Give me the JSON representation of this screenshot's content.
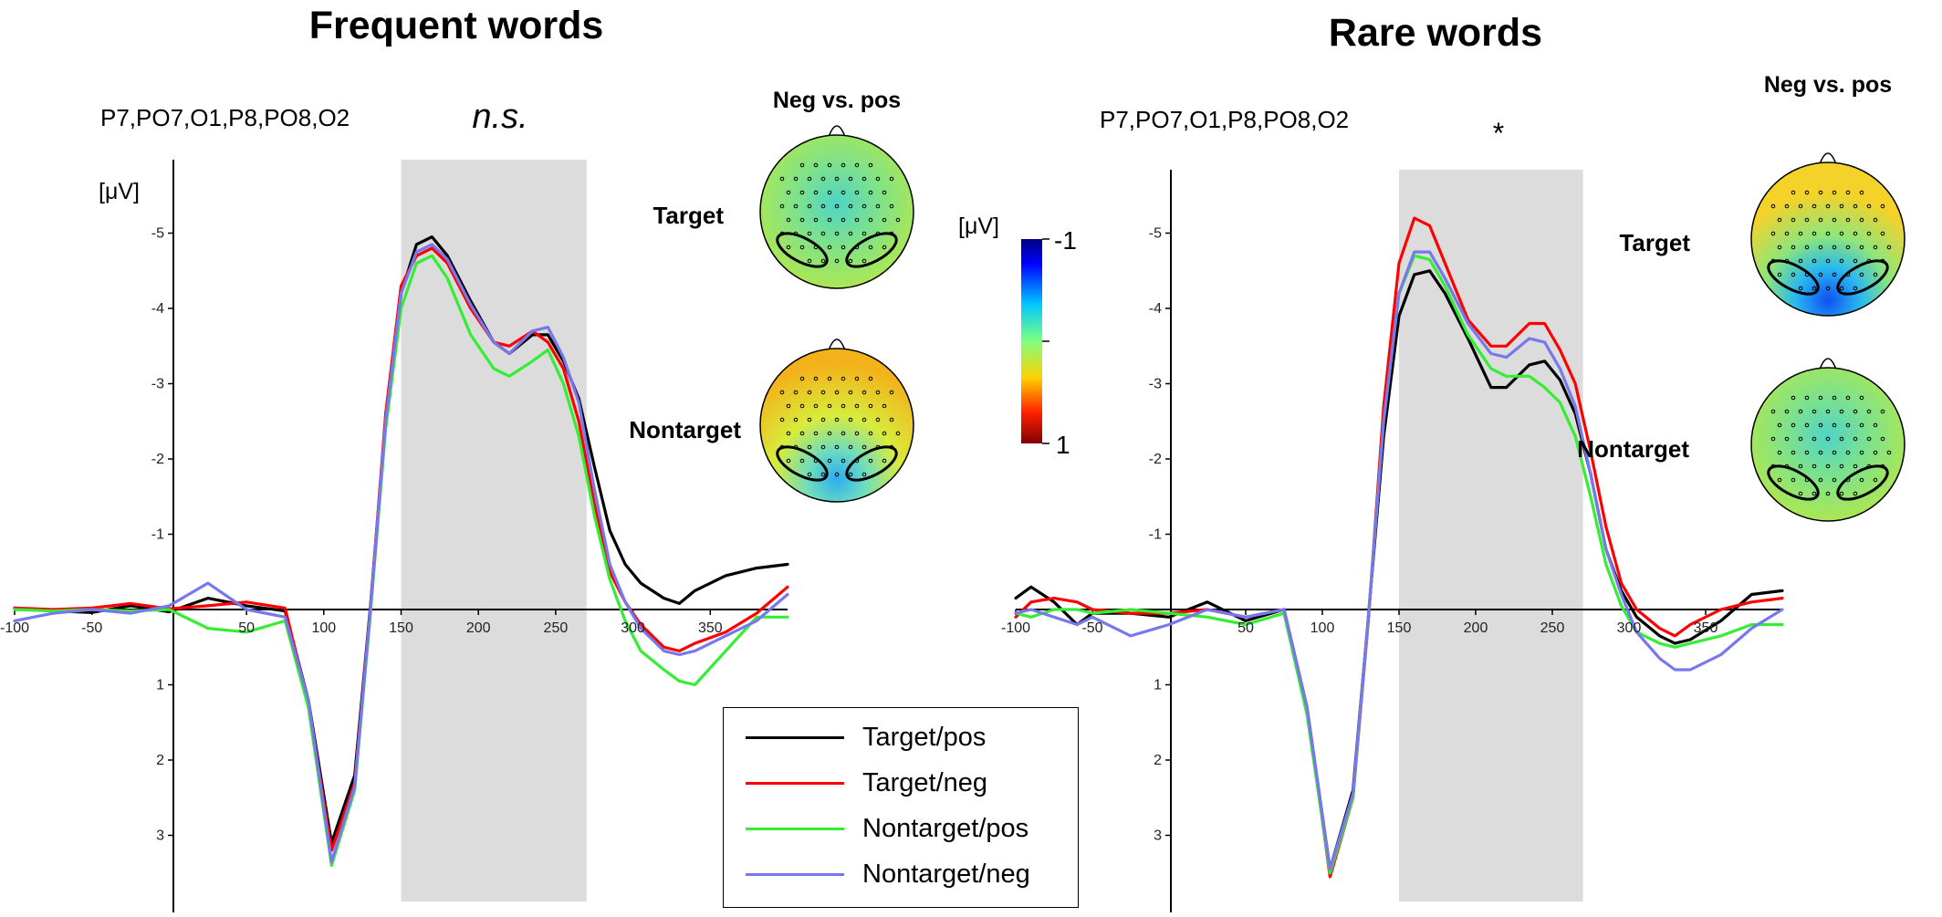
{
  "chart_data": [
    {
      "type": "line",
      "title": "Frequent words",
      "channels": "P7,PO7,O1,P8,PO8,O2",
      "significance": "n.s.",
      "ylabel": "[μV]",
      "y_inverted": true,
      "xlim": [
        -100,
        400
      ],
      "ylim": [
        -5.9,
        4.0
      ],
      "x_ticks": [
        "-100",
        "-50",
        "50",
        "100",
        "150",
        "200",
        "250",
        "300",
        "350"
      ],
      "y_ticks": [
        "-5",
        "-4",
        "-3",
        "-2",
        "-1",
        "1",
        "2",
        "3"
      ],
      "shaded_window": [
        150,
        270
      ],
      "topomap_header": "Neg vs. pos",
      "topomaps": [
        {
          "label": "Target",
          "pattern": "neutral-cool"
        },
        {
          "label": "Nontarget",
          "pattern": "warm-top-cool-bottom"
        }
      ],
      "series": [
        {
          "name": "Target/pos",
          "color": "#000000",
          "x": [
            -100,
            -75,
            -50,
            -25,
            0,
            25,
            50,
            75,
            90,
            105,
            120,
            130,
            140,
            150,
            160,
            170,
            180,
            195,
            210,
            220,
            235,
            245,
            255,
            265,
            275,
            285,
            295,
            305,
            320,
            330,
            340,
            360,
            380,
            400
          ],
          "y": [
            -0.02,
            0.02,
            0.04,
            -0.05,
            0.03,
            -0.15,
            -0.05,
            0.02,
            1.2,
            3.1,
            2.2,
            0.0,
            -2.5,
            -4.2,
            -4.85,
            -4.95,
            -4.7,
            -4.1,
            -3.55,
            -3.4,
            -3.65,
            -3.65,
            -3.3,
            -2.8,
            -1.9,
            -1.05,
            -0.6,
            -0.35,
            -0.15,
            -0.08,
            -0.25,
            -0.45,
            -0.55,
            -0.6
          ]
        },
        {
          "name": "Target/neg",
          "color": "#ff0000",
          "x": [
            -100,
            -75,
            -50,
            -25,
            0,
            25,
            50,
            75,
            90,
            105,
            120,
            130,
            140,
            150,
            160,
            170,
            180,
            195,
            210,
            220,
            235,
            245,
            255,
            265,
            275,
            285,
            295,
            305,
            320,
            330,
            340,
            360,
            380,
            400
          ],
          "y": [
            -0.02,
            0.0,
            -0.02,
            -0.08,
            -0.01,
            -0.05,
            -0.1,
            -0.02,
            1.25,
            3.2,
            2.3,
            0.05,
            -2.6,
            -4.3,
            -4.7,
            -4.8,
            -4.6,
            -4.0,
            -3.55,
            -3.5,
            -3.7,
            -3.55,
            -3.2,
            -2.5,
            -1.4,
            -0.5,
            -0.1,
            0.2,
            0.5,
            0.55,
            0.45,
            0.3,
            0.05,
            -0.3
          ]
        },
        {
          "name": "Nontarget/pos",
          "color": "#33ee33",
          "x": [
            -100,
            -75,
            -50,
            -25,
            0,
            25,
            50,
            75,
            90,
            105,
            120,
            130,
            140,
            150,
            160,
            170,
            180,
            195,
            210,
            220,
            235,
            245,
            255,
            265,
            275,
            285,
            295,
            305,
            320,
            330,
            340,
            360,
            380,
            400
          ],
          "y": [
            0.0,
            0.02,
            0.0,
            0.02,
            0.0,
            0.25,
            0.3,
            0.15,
            1.3,
            3.4,
            2.4,
            0.1,
            -2.4,
            -4.0,
            -4.6,
            -4.7,
            -4.4,
            -3.65,
            -3.2,
            -3.1,
            -3.3,
            -3.45,
            -3.0,
            -2.3,
            -1.25,
            -0.4,
            0.15,
            0.55,
            0.8,
            0.95,
            1.0,
            0.55,
            0.1,
            0.1
          ]
        },
        {
          "name": "Nontarget/neg",
          "color": "#7777ee",
          "x": [
            -100,
            -75,
            -50,
            -25,
            0,
            25,
            50,
            75,
            90,
            105,
            120,
            130,
            140,
            150,
            160,
            170,
            180,
            195,
            210,
            220,
            235,
            245,
            255,
            265,
            275,
            285,
            295,
            305,
            320,
            330,
            340,
            360,
            380,
            400
          ],
          "y": [
            0.15,
            0.05,
            0.0,
            0.05,
            -0.05,
            -0.35,
            0.0,
            0.1,
            1.2,
            3.35,
            2.35,
            0.05,
            -2.5,
            -4.2,
            -4.75,
            -4.85,
            -4.65,
            -4.05,
            -3.55,
            -3.4,
            -3.7,
            -3.75,
            -3.35,
            -2.75,
            -1.6,
            -0.6,
            -0.1,
            0.25,
            0.55,
            0.6,
            0.55,
            0.35,
            0.15,
            -0.2
          ]
        }
      ]
    },
    {
      "type": "line",
      "title": "Rare words",
      "channels": "P7,PO7,O1,P8,PO8,O2",
      "significance": "*",
      "ylabel": "[μV]",
      "y_inverted": true,
      "xlim": [
        -100,
        400
      ],
      "ylim": [
        -5.9,
        4.0
      ],
      "x_ticks": [
        "-100",
        "-50",
        "50",
        "100",
        "150",
        "200",
        "250",
        "300",
        "350"
      ],
      "y_ticks": [
        "-5",
        "-4",
        "-3",
        "-2",
        "-1",
        "1",
        "2",
        "3"
      ],
      "shaded_window": [
        150,
        270
      ],
      "topomap_header": "Neg vs. pos",
      "topomaps": [
        {
          "label": "Target",
          "pattern": "cool-bottom"
        },
        {
          "label": "Nontarget",
          "pattern": "neutral-cool"
        }
      ],
      "series": [
        {
          "name": "Target/pos",
          "color": "#000000",
          "x": [
            -100,
            -90,
            -75,
            -60,
            -50,
            -25,
            0,
            25,
            50,
            75,
            90,
            105,
            120,
            130,
            140,
            150,
            160,
            170,
            180,
            195,
            210,
            220,
            235,
            245,
            255,
            265,
            275,
            285,
            295,
            305,
            320,
            330,
            340,
            360,
            380,
            400
          ],
          "y": [
            -0.15,
            -0.3,
            -0.1,
            0.2,
            0.05,
            0.05,
            0.1,
            -0.1,
            0.15,
            0.0,
            1.3,
            3.45,
            2.4,
            0.1,
            -2.3,
            -3.9,
            -4.45,
            -4.5,
            -4.2,
            -3.6,
            -2.95,
            -2.95,
            -3.25,
            -3.3,
            -3.05,
            -2.6,
            -1.8,
            -0.8,
            -0.25,
            0.1,
            0.35,
            0.45,
            0.4,
            0.15,
            -0.2,
            -0.25
          ]
        },
        {
          "name": "Target/neg",
          "color": "#ff0000",
          "x": [
            -100,
            -90,
            -75,
            -60,
            -50,
            -25,
            0,
            25,
            50,
            75,
            90,
            105,
            120,
            130,
            140,
            150,
            160,
            170,
            180,
            195,
            210,
            220,
            235,
            245,
            255,
            265,
            275,
            285,
            295,
            305,
            320,
            330,
            340,
            360,
            380,
            400
          ],
          "y": [
            0.1,
            -0.1,
            -0.15,
            -0.1,
            0.0,
            0.05,
            0.05,
            0.0,
            0.1,
            0.0,
            1.3,
            3.55,
            2.5,
            0.15,
            -2.7,
            -4.6,
            -5.2,
            -5.1,
            -4.6,
            -3.85,
            -3.5,
            -3.5,
            -3.8,
            -3.8,
            -3.45,
            -3.0,
            -2.1,
            -1.1,
            -0.35,
            0.0,
            0.25,
            0.35,
            0.2,
            0.0,
            -0.1,
            -0.15
          ]
        },
        {
          "name": "Nontarget/pos",
          "color": "#33ee33",
          "x": [
            -100,
            -90,
            -75,
            -60,
            -50,
            -25,
            0,
            25,
            50,
            75,
            90,
            105,
            120,
            130,
            140,
            150,
            160,
            170,
            180,
            195,
            210,
            220,
            235,
            245,
            255,
            265,
            275,
            285,
            295,
            305,
            320,
            330,
            340,
            360,
            380,
            400
          ],
          "y": [
            0.05,
            0.1,
            0.0,
            0.0,
            0.05,
            0.0,
            0.05,
            0.1,
            0.2,
            0.05,
            1.4,
            3.5,
            2.5,
            0.1,
            -2.5,
            -4.2,
            -4.7,
            -4.65,
            -4.3,
            -3.65,
            -3.2,
            -3.1,
            -3.1,
            -2.95,
            -2.75,
            -2.3,
            -1.5,
            -0.6,
            -0.05,
            0.3,
            0.45,
            0.5,
            0.45,
            0.35,
            0.2,
            0.2
          ]
        },
        {
          "name": "Nontarget/neg",
          "color": "#7777ee",
          "x": [
            -100,
            -90,
            -75,
            -60,
            -50,
            -25,
            0,
            25,
            50,
            75,
            90,
            105,
            120,
            130,
            140,
            150,
            160,
            170,
            180,
            195,
            210,
            220,
            235,
            245,
            255,
            265,
            275,
            285,
            295,
            305,
            320,
            330,
            340,
            360,
            380,
            400
          ],
          "y": [
            0.05,
            0.0,
            0.1,
            0.2,
            0.1,
            0.35,
            0.2,
            0.0,
            0.1,
            0.0,
            1.3,
            3.45,
            2.45,
            0.1,
            -2.5,
            -4.2,
            -4.75,
            -4.75,
            -4.4,
            -3.8,
            -3.4,
            -3.35,
            -3.6,
            -3.55,
            -3.2,
            -2.7,
            -1.8,
            -0.8,
            -0.2,
            0.3,
            0.65,
            0.8,
            0.8,
            0.6,
            0.25,
            0.0
          ]
        }
      ]
    }
  ],
  "colorbar": {
    "label": "[μV]",
    "max_label": "-1",
    "min_label": "1"
  },
  "legend": {
    "entries": [
      {
        "label": "Target/pos",
        "color": "#000000"
      },
      {
        "label": "Target/neg",
        "color": "#ff0000"
      },
      {
        "label": "Nontarget/pos",
        "color": "#33ee33"
      },
      {
        "label": "Nontarget/neg",
        "color": "#7777ee"
      }
    ]
  }
}
